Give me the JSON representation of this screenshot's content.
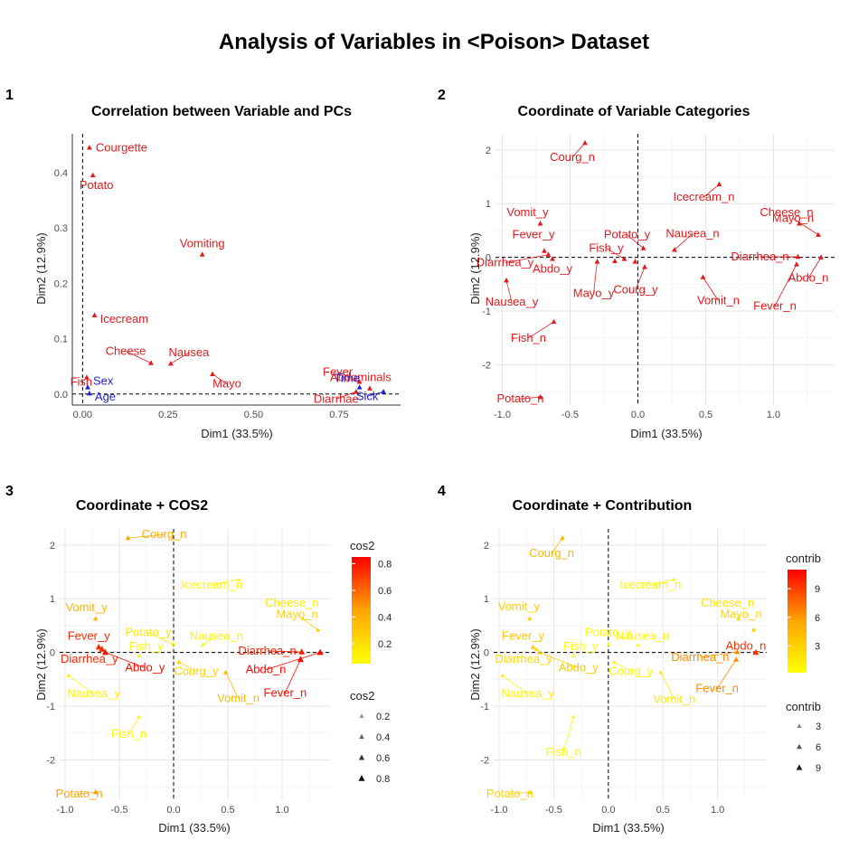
{
  "title": "Analysis of Variables in <Poison> Dataset",
  "chart_data": [
    {
      "panel_tag": "1",
      "type": "scatter",
      "title": "Correlation between Variable and PCs",
      "xlabel": "Dim1 (33.5%)",
      "ylabel": "Dim2 (12.9%)",
      "xlim": [
        -0.03,
        0.93
      ],
      "ylim": [
        -0.02,
        0.47
      ],
      "xticks": [
        0.0,
        0.25,
        0.5,
        0.75
      ],
      "xtick_labels": [
        "0.00",
        "0.25",
        "0.50",
        "0.75"
      ],
      "yticks": [
        0.0,
        0.1,
        0.2,
        0.3,
        0.4
      ],
      "ytick_labels": [
        "0.0",
        "0.1",
        "0.2",
        "0.3",
        "0.4"
      ],
      "grid": false,
      "points": [
        {
          "label": "Courgette",
          "x": 0.02,
          "y": 0.445,
          "color": "#e31a1c"
        },
        {
          "label": "Potato",
          "x": 0.03,
          "y": 0.395,
          "color": "#e31a1c"
        },
        {
          "label": "Vomiting",
          "x": 0.35,
          "y": 0.252,
          "color": "#e31a1c"
        },
        {
          "label": "Icecream",
          "x": 0.035,
          "y": 0.142,
          "color": "#e31a1c"
        },
        {
          "label": "Cheese",
          "x": 0.2,
          "y": 0.056,
          "color": "#e31a1c"
        },
        {
          "label": "Nausea",
          "x": 0.258,
          "y": 0.055,
          "color": "#e31a1c"
        },
        {
          "label": "Mayo",
          "x": 0.38,
          "y": 0.036,
          "color": "#e31a1c"
        },
        {
          "label": "Fever",
          "x": 0.81,
          "y": 0.022,
          "color": "#e31a1c"
        },
        {
          "label": "Abdominals",
          "x": 0.84,
          "y": 0.01,
          "color": "#e31a1c"
        },
        {
          "label": "Diarrhae",
          "x": 0.8,
          "y": 0.004,
          "color": "#e31a1c"
        },
        {
          "label": "Fish",
          "x": 0.012,
          "y": 0.03,
          "color": "#e31a1c"
        },
        {
          "label": "Sex",
          "x": 0.015,
          "y": 0.012,
          "color": "#1f1fd1"
        },
        {
          "label": "Age",
          "x": 0.02,
          "y": 0.001,
          "color": "#1f1fd1"
        },
        {
          "label": "Time",
          "x": 0.81,
          "y": 0.012,
          "color": "#1f1fd1"
        },
        {
          "label": "Sick",
          "x": 0.88,
          "y": 0.004,
          "color": "#1f1fd1"
        }
      ]
    },
    {
      "panel_tag": "2",
      "type": "scatter",
      "title": "Coordinate of Variable Categories",
      "xlabel": "Dim1 (33.5%)",
      "ylabel": "Dim2 (12.9%)",
      "xlim": [
        -1.05,
        1.45
      ],
      "ylim": [
        -2.75,
        2.3
      ],
      "xticks": [
        -1.0,
        -0.5,
        0.0,
        0.5,
        1.0
      ],
      "xtick_labels": [
        "-1.0",
        "-0.5",
        "0.0",
        "0.5",
        "1.0"
      ],
      "yticks": [
        -2,
        -1,
        0,
        1,
        2
      ],
      "ytick_labels": [
        "-2",
        "-1",
        "0",
        "1",
        "2"
      ],
      "grid": true,
      "color": "#e31a1c",
      "points": [
        {
          "label": "Courg_n",
          "x": -0.39,
          "y": 2.13
        },
        {
          "label": "Icecream_n",
          "x": 0.6,
          "y": 1.36
        },
        {
          "label": "Cheese_n",
          "x": 1.19,
          "y": 0.63
        },
        {
          "label": "Vomit_y",
          "x": -0.72,
          "y": 0.63
        },
        {
          "label": "Potato_y",
          "x": 0.04,
          "y": 0.17
        },
        {
          "label": "Nausea_n",
          "x": 0.27,
          "y": 0.14
        },
        {
          "label": "Mayo_n",
          "x": 1.33,
          "y": 0.42
        },
        {
          "label": "Fever_y",
          "x": -0.69,
          "y": 0.12
        },
        {
          "label": "Fish_y",
          "x": -0.1,
          "y": -0.03
        },
        {
          "label": "Diarrhea_n",
          "x": 1.18,
          "y": 0.01
        },
        {
          "label": "Diarrhea_y",
          "x": -0.66,
          "y": 0.05
        },
        {
          "label": "Abdo_y",
          "x": -0.63,
          "y": -0.03
        },
        {
          "label": "Abdo_n",
          "x": 1.35,
          "y": 0.0
        },
        {
          "label": "Mayo_y",
          "x": -0.3,
          "y": -0.08
        },
        {
          "label": "Courg_y",
          "x": 0.05,
          "y": -0.18
        },
        {
          "label": "Vomit_n",
          "x": 0.48,
          "y": -0.37
        },
        {
          "label": "Fever_n",
          "x": 1.17,
          "y": -0.13
        },
        {
          "label": "Nausea_y",
          "x": -0.97,
          "y": -0.43
        },
        {
          "label": "Fish_n",
          "x": -0.62,
          "y": -1.2
        },
        {
          "label": "Potato_n",
          "x": -0.72,
          "y": -2.6
        },
        {
          "label": "",
          "x": -0.17,
          "y": -0.07
        },
        {
          "label": "",
          "x": -0.02,
          "y": -0.08
        }
      ]
    },
    {
      "panel_tag": "3",
      "type": "scatter",
      "title": "Coordinate + COS2",
      "xlabel": "Dim1 (33.5%)",
      "ylabel": "Dim2 (12.9%)",
      "xlim": [
        -1.05,
        1.45
      ],
      "ylim": [
        -2.75,
        2.3
      ],
      "xticks": [
        -1.0,
        -0.5,
        0.0,
        0.5,
        1.0
      ],
      "xtick_labels": [
        "-1.0",
        "-0.5",
        "0.0",
        "0.5",
        "1.0"
      ],
      "yticks": [
        -2,
        -1,
        0,
        1,
        2
      ],
      "ytick_labels": [
        "-2",
        "-1",
        "0",
        "1",
        "2"
      ],
      "grid": true,
      "legend_title_color": "cos2",
      "legend_ticks_color": [
        "0.8",
        "0.6",
        "0.4",
        "0.2"
      ],
      "legend_range": [
        0.05,
        0.85
      ],
      "legend_title_size": "cos2",
      "legend_size_labels": [
        "0.2",
        "0.4",
        "0.6",
        "0.8"
      ],
      "legend_size_values": [
        0.2,
        0.4,
        0.6,
        0.8
      ],
      "points": [
        {
          "label": "Courg_n",
          "x": -0.42,
          "y": 2.13,
          "value": 0.43
        },
        {
          "label": "Icecream_n",
          "x": 0.6,
          "y": 1.36,
          "value": 0.08
        },
        {
          "label": "Cheese_n",
          "x": 1.19,
          "y": 0.63,
          "value": 0.15
        },
        {
          "label": "Vomit_y",
          "x": -0.72,
          "y": 0.63,
          "value": 0.38
        },
        {
          "label": "Potato_y",
          "x": 0.0,
          "y": 0.15,
          "value": 0.15
        },
        {
          "label": "Nausea_n",
          "x": 0.27,
          "y": 0.14,
          "value": 0.1
        },
        {
          "label": "Mayo_n",
          "x": 1.33,
          "y": 0.42,
          "value": 0.25
        },
        {
          "label": "Fever_y",
          "x": -0.69,
          "y": 0.1,
          "value": 0.75
        },
        {
          "label": "Fish_y",
          "x": -0.32,
          "y": -0.06,
          "value": 0.08
        },
        {
          "label": "Diarrhea_n",
          "x": 1.18,
          "y": 0.01,
          "value": 0.78
        },
        {
          "label": "Diarrhea_y",
          "x": -0.66,
          "y": 0.06,
          "value": 0.76
        },
        {
          "label": "Abdo_y",
          "x": -0.63,
          "y": 0.0,
          "value": 0.82
        },
        {
          "label": "Abdo_n",
          "x": 1.35,
          "y": 0.0,
          "value": 0.83
        },
        {
          "label": "Courg_y",
          "x": 0.05,
          "y": -0.18,
          "value": 0.25
        },
        {
          "label": "Vomit_n",
          "x": 0.48,
          "y": -0.37,
          "value": 0.35
        },
        {
          "label": "Fever_n",
          "x": 1.17,
          "y": -0.13,
          "value": 0.82
        },
        {
          "label": "Nausea_y",
          "x": -0.97,
          "y": -0.43,
          "value": 0.1
        },
        {
          "label": "Fish_n",
          "x": -0.32,
          "y": -1.2,
          "value": 0.08
        },
        {
          "label": "Potato_n",
          "x": -0.72,
          "y": -2.6,
          "value": 0.45
        }
      ]
    },
    {
      "panel_tag": "4",
      "type": "scatter",
      "title": "Coordinate + Contribution",
      "xlabel": "Dim1 (33.5%)",
      "ylabel": "Dim2 (12.9%)",
      "xlim": [
        -1.05,
        1.45
      ],
      "ylim": [
        -2.75,
        2.3
      ],
      "xticks": [
        -1.0,
        -0.5,
        0.0,
        0.5,
        1.0
      ],
      "xtick_labels": [
        "-1.0",
        "-0.5",
        "0.0",
        "0.5",
        "1.0"
      ],
      "yticks": [
        -2,
        -1,
        0,
        1,
        2
      ],
      "ytick_labels": [
        "-2",
        "-1",
        "0",
        "1",
        "2"
      ],
      "grid": true,
      "legend_title_color": "contrib",
      "legend_ticks_color": [
        "9",
        "6",
        "3"
      ],
      "legend_range": [
        0.2,
        11
      ],
      "legend_title_size": "contrib",
      "legend_size_labels": [
        "3",
        "6",
        "9"
      ],
      "legend_size_values": [
        3,
        6,
        9
      ],
      "points": [
        {
          "label": "Courg_n",
          "x": -0.42,
          "y": 2.13,
          "value": 4.5
        },
        {
          "label": "Icecream_n",
          "x": 0.6,
          "y": 1.36,
          "value": 0.8
        },
        {
          "label": "Cheese_n",
          "x": 1.19,
          "y": 0.63,
          "value": 1.8
        },
        {
          "label": "Vomit_y",
          "x": -0.72,
          "y": 0.63,
          "value": 3.0
        },
        {
          "label": "Potato_y",
          "x": 0.0,
          "y": 0.15,
          "value": 0.3
        },
        {
          "label": "Nausea_n",
          "x": 0.27,
          "y": 0.14,
          "value": 0.8
        },
        {
          "label": "Mayo_n",
          "x": 1.33,
          "y": 0.42,
          "value": 3.0
        },
        {
          "label": "Fever_y",
          "x": -0.69,
          "y": 0.1,
          "value": 3.5
        },
        {
          "label": "Fish_y",
          "x": -0.32,
          "y": -0.06,
          "value": 0.3
        },
        {
          "label": "Diarrhea_n",
          "x": 1.18,
          "y": 0.01,
          "value": 6.5
        },
        {
          "label": "Diarrhea_y",
          "x": -0.66,
          "y": 0.06,
          "value": 2.5
        },
        {
          "label": "Abdo_y",
          "x": -0.63,
          "y": 0.0,
          "value": 3.5
        },
        {
          "label": "Abdo_n",
          "x": 1.35,
          "y": 0.0,
          "value": 9.5
        },
        {
          "label": "Courg_y",
          "x": 0.05,
          "y": -0.18,
          "value": 0.8
        },
        {
          "label": "Vomit_n",
          "x": 0.48,
          "y": -0.37,
          "value": 1.5
        },
        {
          "label": "Fever_n",
          "x": 1.17,
          "y": -0.13,
          "value": 6.5
        },
        {
          "label": "Nausea_y",
          "x": -0.97,
          "y": -0.43,
          "value": 0.8
        },
        {
          "label": "Fish_n",
          "x": -0.32,
          "y": -1.2,
          "value": 0.5
        },
        {
          "label": "Potato_n",
          "x": -0.72,
          "y": -2.6,
          "value": 3.0
        }
      ]
    }
  ]
}
